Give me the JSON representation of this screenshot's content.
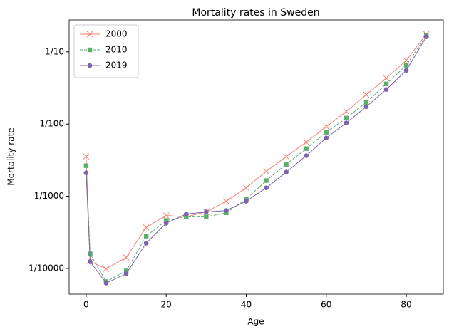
{
  "chart_data": {
    "type": "line",
    "title": "Mortality rates in Sweden",
    "x_label": "Age",
    "y_label": "Mortality rate",
    "yscale": "log",
    "legend": "upper left",
    "x": [
      0,
      1,
      5,
      10,
      15,
      20,
      25,
      30,
      35,
      40,
      45,
      50,
      55,
      60,
      65,
      70,
      75,
      80,
      85
    ],
    "xlim": [
      -4.25,
      89.25
    ],
    "xticks": [
      0,
      20,
      40,
      60,
      80
    ],
    "ylim": [
      4.41e-05,
      0.277
    ],
    "yticks": [
      {
        "value": 0.0001,
        "label": "1/10000"
      },
      {
        "value": 0.001,
        "label": "1/1000"
      },
      {
        "value": 0.01,
        "label": "1/100"
      },
      {
        "value": 0.1,
        "label": "1/10"
      }
    ],
    "series": [
      {
        "name": "2000",
        "color": "#fa8072",
        "marker": "x",
        "dash": "solid",
        "values": [
          0.00356,
          0.000125,
          9.88e-05,
          0.000142,
          0.000369,
          0.000542,
          0.00052,
          0.000607,
          0.000853,
          0.00131,
          0.00221,
          0.00356,
          0.00561,
          0.00924,
          0.0149,
          0.0256,
          0.0432,
          0.0762,
          0.176
        ]
      },
      {
        "name": "2010",
        "color": "#5aae6e",
        "marker": "square",
        "dash": "dashed",
        "values": [
          0.00265,
          0.000159,
          6.58e-05,
          9.24e-05,
          0.00028,
          0.000462,
          0.00052,
          0.00052,
          0.00059,
          0.000914,
          0.00165,
          0.00277,
          0.00457,
          0.0077,
          0.0121,
          0.02,
          0.036,
          0.065,
          0.168
        ]
      },
      {
        "name": "2019",
        "color": "#7b64ad",
        "marker": "circle",
        "dash": "solid",
        "values": [
          0.00211,
          0.000124,
          6.28e-05,
          8.44e-05,
          0.000224,
          0.000423,
          0.000568,
          0.000607,
          0.000635,
          0.000853,
          0.00131,
          0.00216,
          0.00365,
          0.00643,
          0.0104,
          0.0174,
          0.0301,
          0.0555,
          0.162
        ]
      }
    ]
  }
}
